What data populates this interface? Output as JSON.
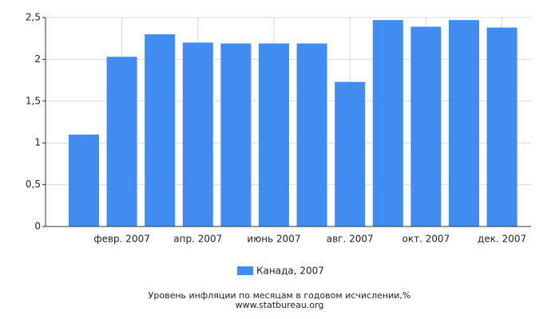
{
  "chart_data": {
    "type": "bar",
    "categories": [
      null,
      "февр. 2007",
      null,
      "апр. 2007",
      null,
      "июнь 2007",
      null,
      "авг. 2007",
      null,
      "окт. 2007",
      null,
      "дек. 2007"
    ],
    "series": [
      {
        "name": "Канада, 2007",
        "color": "#418cf0",
        "values": [
          1.1,
          2.03,
          2.3,
          2.2,
          2.19,
          2.19,
          2.19,
          1.73,
          2.47,
          2.39,
          2.47,
          2.38
        ]
      }
    ],
    "ylim": [
      0,
      2.5
    ],
    "yticks": [
      0,
      {
        "value": 0.5,
        "label": "0,5"
      },
      1,
      {
        "value": 1.5,
        "label": "1,5"
      },
      2,
      {
        "value": 2.5,
        "label": "2,5"
      }
    ],
    "grid": true,
    "legend": "bottom",
    "footer": [
      "Уровень инфляции по месяцам в годовом исчислении,%",
      "www.statbureau.org"
    ]
  }
}
